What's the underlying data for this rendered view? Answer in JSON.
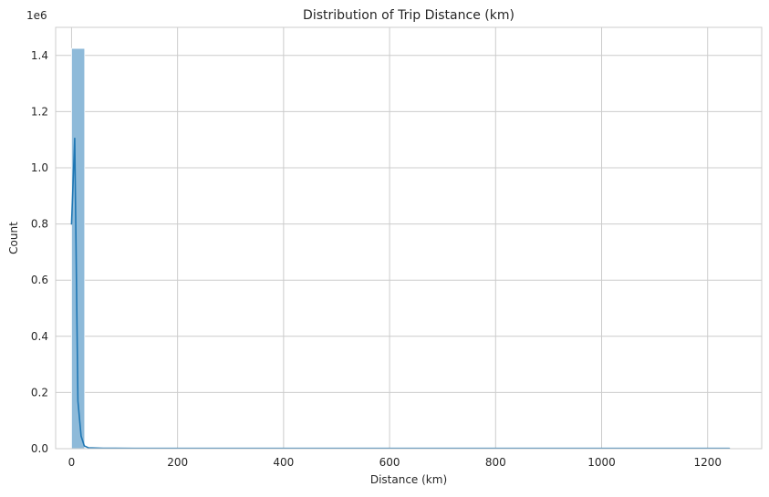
{
  "chart_data": {
    "type": "bar",
    "subtype": "histogram-with-kde",
    "title": "Distribution of Trip Distance (km)",
    "xlabel": "Distance (km)",
    "ylabel": "Count",
    "y_offset_label": "1e6",
    "xlim": [
      -30,
      1302
    ],
    "ylim": [
      0,
      1.5
    ],
    "x_ticks": [
      0,
      200,
      400,
      600,
      800,
      1000,
      1200
    ],
    "x_tick_labels": [
      "0",
      "200",
      "400",
      "600",
      "800",
      "1000",
      "1200"
    ],
    "y_ticks": [
      0,
      0.2,
      0.4,
      0.6,
      0.8,
      1.0,
      1.2,
      1.4
    ],
    "y_tick_labels": [
      "0.0",
      "0.2",
      "0.4",
      "0.6",
      "0.8",
      "1.0",
      "1.2",
      "1.4"
    ],
    "grid": true,
    "bar_color": "#8ebad9",
    "bar_edge_color": "#ffffff",
    "line_color": "#1f77b4",
    "grid_color": "#cccccc",
    "bins": [
      {
        "x0": 0,
        "x1": 24.8,
        "value": 1.425
      }
    ],
    "kde": {
      "x": [
        0,
        6,
        12,
        18,
        24,
        32,
        60,
        120,
        300,
        600,
        900,
        1241
      ],
      "y": [
        0.8,
        1.105,
        0.17,
        0.045,
        0.01,
        0.003,
        0.0015,
        0.0012,
        0.0012,
        0.0012,
        0.0012,
        0.0012
      ]
    }
  }
}
